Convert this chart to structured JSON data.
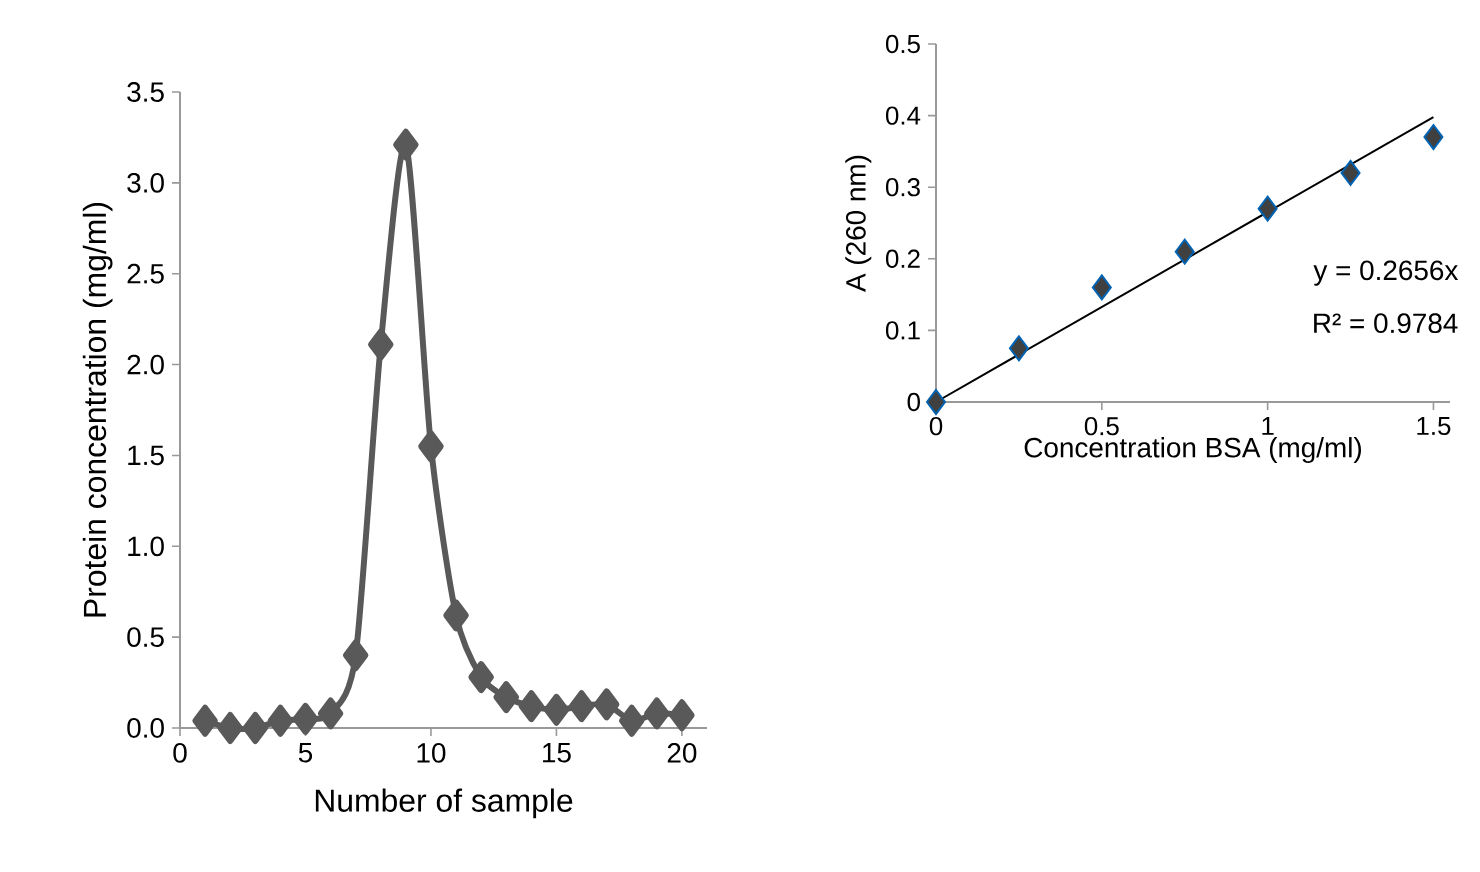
{
  "chart_data": [
    {
      "type": "line",
      "xlabel": "Number of sample",
      "ylabel": "Protein concentration (mg/ml)",
      "xlim": [
        0,
        21
      ],
      "xticks": [
        0,
        5,
        10,
        15,
        20
      ],
      "ylim": [
        0,
        3.5
      ],
      "yticks": [
        {
          "value": 0,
          "label": "0.0"
        },
        {
          "value": 0.5,
          "label": "0.5"
        },
        {
          "value": 1,
          "label": "1.0"
        },
        {
          "value": 1.5,
          "label": "1.5"
        },
        {
          "value": 2,
          "label": "2.0"
        },
        {
          "value": 2.5,
          "label": "2.5"
        },
        {
          "value": 3,
          "label": "3.0"
        },
        {
          "value": 3.5,
          "label": "3.5"
        }
      ],
      "marker": "diamond",
      "line_style": "solid",
      "series": [
        {
          "color": "#595959",
          "x": [
            1,
            2,
            3,
            4,
            5,
            6,
            7,
            8,
            9,
            10,
            11,
            12,
            13,
            14,
            15,
            16,
            17,
            18,
            19,
            20
          ],
          "values": [
            0.04,
            0.0,
            0.0,
            0.04,
            0.05,
            0.08,
            0.4,
            2.11,
            3.21,
            1.55,
            0.62,
            0.28,
            0.17,
            0.12,
            0.1,
            0.12,
            0.13,
            0.04,
            0.08,
            0.07
          ]
        }
      ]
    },
    {
      "type": "scatter",
      "xlabel": "Concentration BSA (mg/ml)",
      "ylabel": "A (260 nm)",
      "xlim": [
        0,
        1.55
      ],
      "xticks": [
        0,
        0.5,
        1,
        1.5
      ],
      "ylim": [
        0,
        0.5
      ],
      "yticks": [
        0,
        0.1,
        0.2,
        0.3,
        0.4,
        0.5
      ],
      "marker": "diamond",
      "annotations": [
        "y = 0.2656x",
        "R² = 0.9784"
      ],
      "series": [
        {
          "color": "#404040",
          "x": [
            0,
            0.25,
            0.5,
            0.75,
            1,
            1.25,
            1.5
          ],
          "values": [
            0,
            0.075,
            0.16,
            0.21,
            0.27,
            0.32,
            0.37
          ]
        },
        {
          "type": "line",
          "marker": "none",
          "color": "#000000",
          "x": [
            0,
            1.5
          ],
          "values": [
            0,
            0.398
          ]
        }
      ]
    }
  ]
}
